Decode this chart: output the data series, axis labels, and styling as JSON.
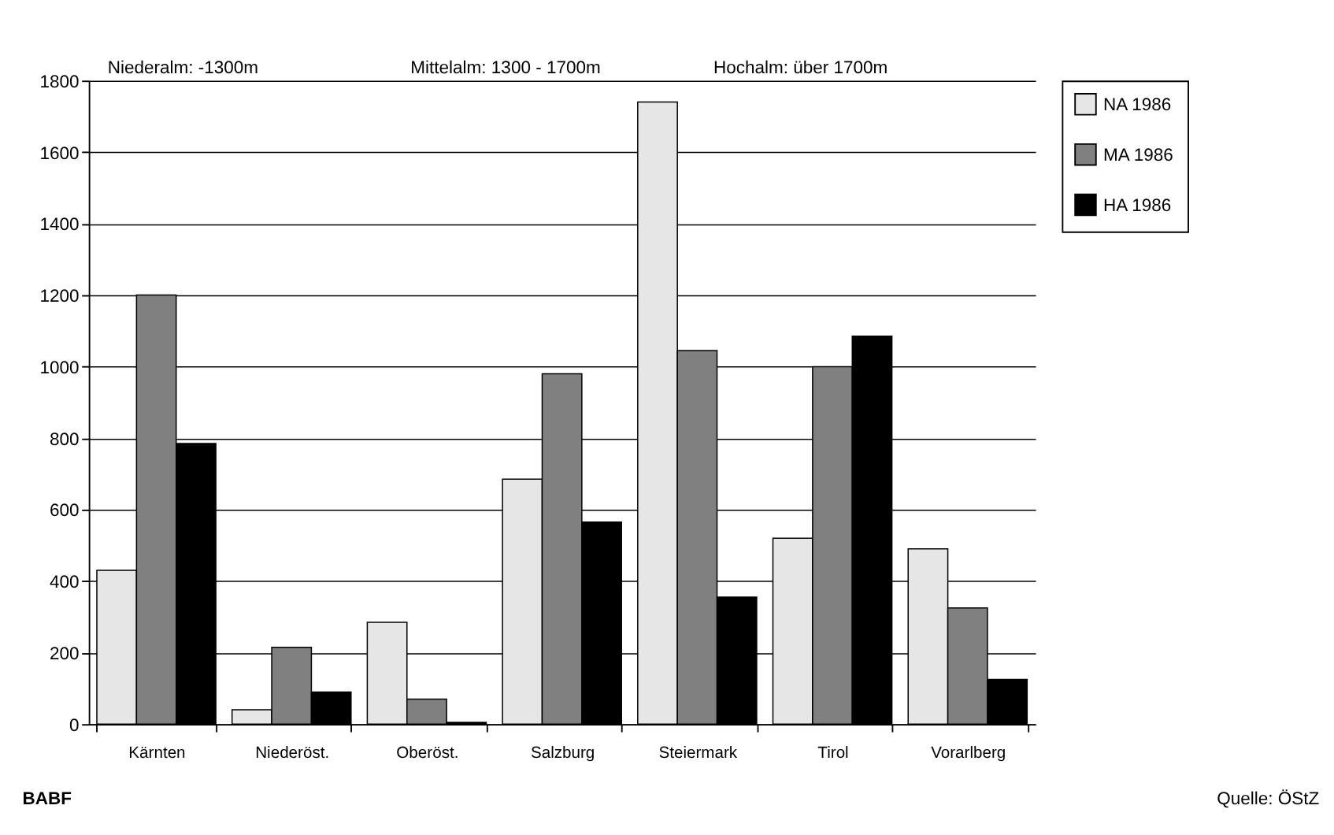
{
  "chart_data": {
    "type": "bar",
    "categories": [
      "Kärnten",
      "Niederöst.",
      "Oberöst.",
      "Salzburg",
      "Steiermark",
      "Tirol",
      "Vorarlberg"
    ],
    "series": [
      {
        "name": "NA 1986",
        "color": "#e6e6e6",
        "values": [
          430,
          40,
          285,
          685,
          1740,
          520,
          490
        ]
      },
      {
        "name": "MA 1986",
        "color": "#808080",
        "values": [
          1200,
          215,
          70,
          980,
          1045,
          1000,
          325
        ]
      },
      {
        "name": "HA 1986",
        "color": "#000000",
        "values": [
          785,
          90,
          5,
          565,
          355,
          1085,
          125
        ]
      }
    ],
    "ylim": [
      0,
      1800
    ],
    "yticks": [
      0,
      200,
      400,
      600,
      800,
      1000,
      1200,
      1400,
      1600,
      1800
    ],
    "grid": "y",
    "legend": "right",
    "annotations": [
      "Niederalm: -1300m",
      "Mittelalm: 1300 - 1700m",
      "Hochalm: über 1700m",
      "BABF",
      "Quelle: ÖStZ"
    ]
  }
}
